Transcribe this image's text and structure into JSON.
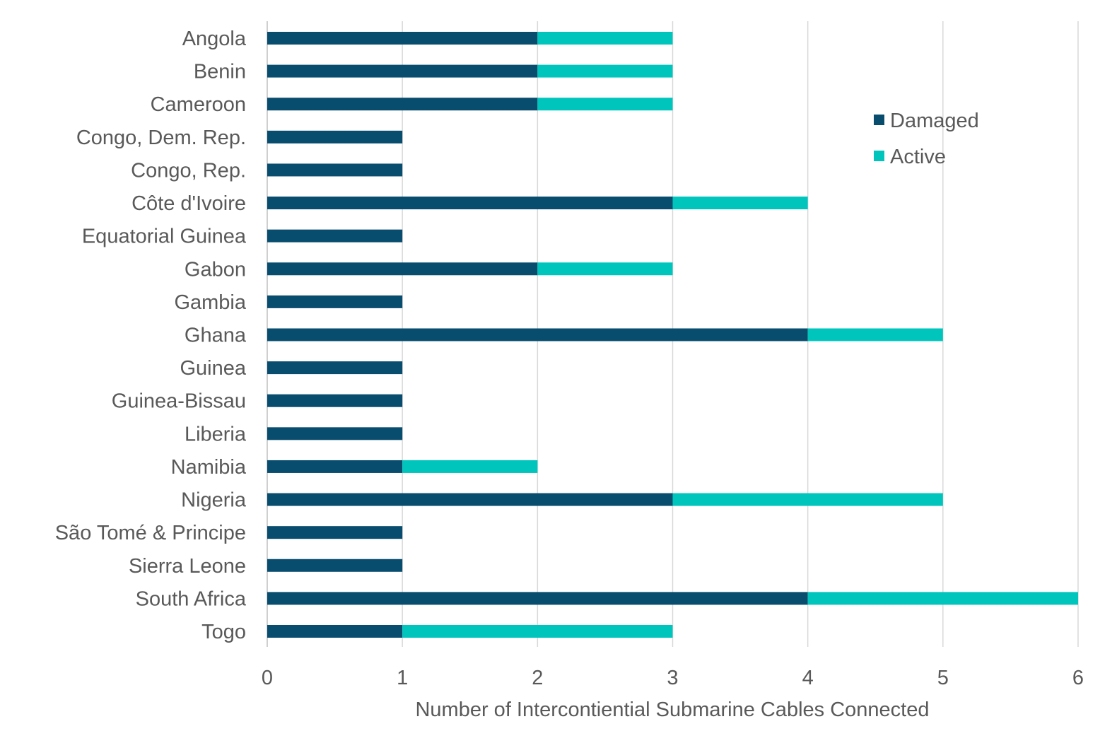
{
  "chart_data": {
    "type": "bar",
    "orientation": "horizontal",
    "stacked": true,
    "title": "",
    "xlabel": "Number of Intercontiential Submarine Cables Connected",
    "ylabel": "",
    "xlim": [
      0,
      6
    ],
    "xticks": [
      "0",
      "1",
      "2",
      "3",
      "4",
      "5",
      "6"
    ],
    "grid": true,
    "legend_position": "top-right",
    "categories": [
      "Angola",
      "Benin",
      "Cameroon",
      "Congo, Dem. Rep.",
      "Congo, Rep.",
      "Côte d'Ivoire",
      "Equatorial Guinea",
      "Gabon",
      "Gambia",
      "Ghana",
      "Guinea",
      "Guinea-Bissau",
      "Liberia",
      "Namibia",
      "Nigeria",
      "São Tomé & Principe",
      "Sierra Leone",
      "South Africa",
      "Togo"
    ],
    "series": [
      {
        "name": "Damaged",
        "color": "#084c6e",
        "values": [
          2,
          2,
          2,
          1,
          1,
          3,
          1,
          2,
          1,
          4,
          1,
          1,
          1,
          1,
          3,
          1,
          1,
          4,
          1
        ]
      },
      {
        "name": "Active",
        "color": "#00c5bd",
        "values": [
          1,
          1,
          1,
          0,
          0,
          1,
          0,
          1,
          0,
          1,
          0,
          0,
          0,
          1,
          2,
          0,
          0,
          2,
          2
        ]
      }
    ]
  }
}
